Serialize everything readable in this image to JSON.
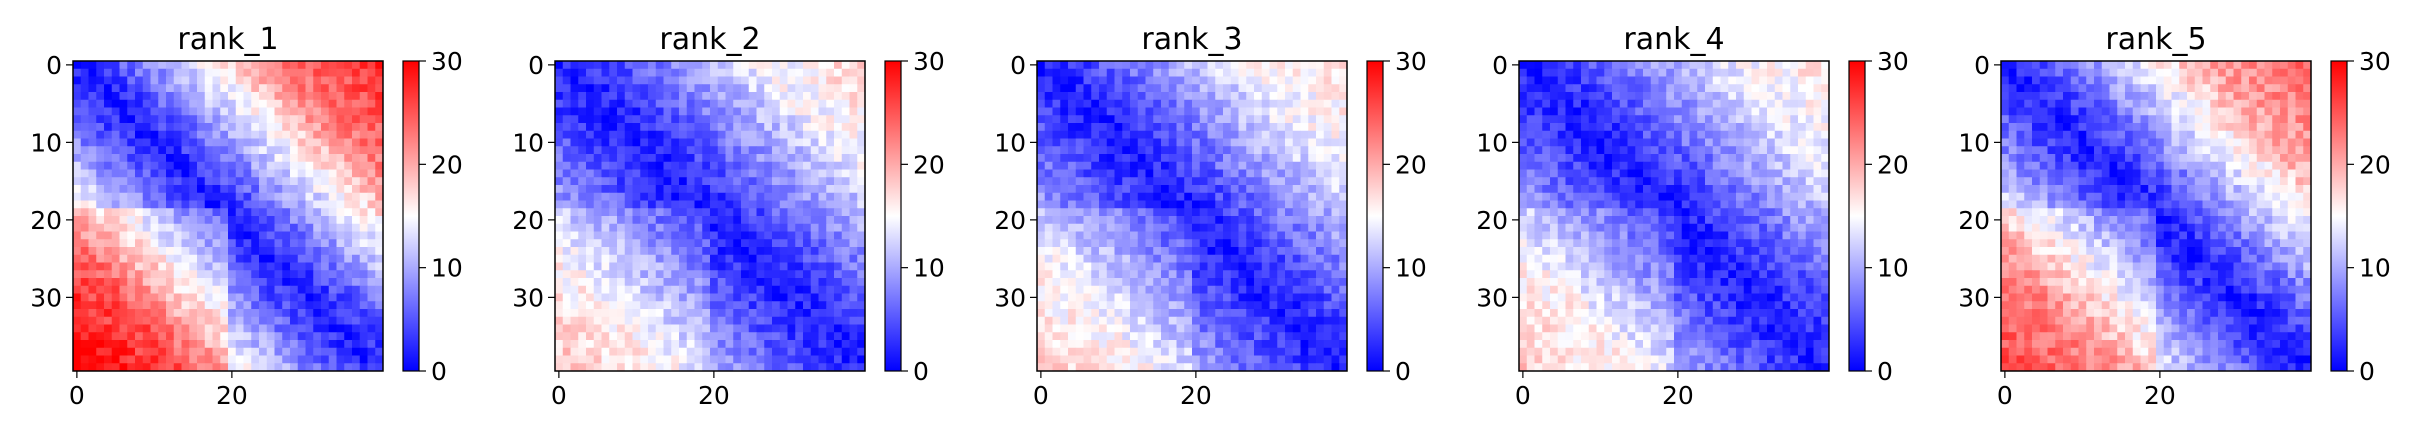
{
  "chart_data": [
    {
      "type": "heatmap",
      "title": "rank_1",
      "x_ticks": [
        "0",
        "20"
      ],
      "y_ticks": [
        "0",
        "10",
        "20",
        "30"
      ],
      "n_rows": 40,
      "n_cols": 40,
      "colorbar": {
        "min": 0,
        "max": 30,
        "ticks": [
          "0",
          "10",
          "20",
          "30"
        ],
        "colormap": "bwr"
      },
      "pattern": {
        "upper_right_corner": 28,
        "lower_left_corner": 27,
        "upper_block_mid": 18,
        "lower_block_mid": 17,
        "diagonal_band": 1.5
      }
    },
    {
      "type": "heatmap",
      "title": "rank_2",
      "x_ticks": [
        "0",
        "20"
      ],
      "y_ticks": [
        "0",
        "10",
        "20",
        "30"
      ],
      "n_rows": 40,
      "n_cols": 40,
      "colorbar": {
        "min": 0,
        "max": 30,
        "ticks": [
          "0",
          "10",
          "20",
          "30"
        ],
        "colormap": "bwr"
      },
      "pattern": {
        "upper_right_corner": 18,
        "lower_left_corner": 16,
        "upper_block_mid": 11,
        "lower_block_mid": 11,
        "diagonal_band": 1.5
      }
    },
    {
      "type": "heatmap",
      "title": "rank_3",
      "x_ticks": [
        "0",
        "20"
      ],
      "y_ticks": [
        "0",
        "10",
        "20",
        "30"
      ],
      "n_rows": 40,
      "n_cols": 40,
      "colorbar": {
        "min": 0,
        "max": 30,
        "ticks": [
          "0",
          "10",
          "20",
          "30"
        ],
        "colormap": "bwr"
      },
      "pattern": {
        "upper_right_corner": 17,
        "lower_left_corner": 15,
        "upper_block_mid": 12,
        "lower_block_mid": 11,
        "diagonal_band": 1.5
      }
    },
    {
      "type": "heatmap",
      "title": "rank_4",
      "x_ticks": [
        "0",
        "20"
      ],
      "y_ticks": [
        "0",
        "10",
        "20",
        "30"
      ],
      "n_rows": 40,
      "n_cols": 40,
      "colorbar": {
        "min": 0,
        "max": 30,
        "ticks": [
          "0",
          "10",
          "20",
          "30"
        ],
        "colormap": "bwr"
      },
      "pattern": {
        "upper_right_corner": 17,
        "lower_left_corner": 16,
        "upper_block_mid": 11,
        "lower_block_mid": 11,
        "diagonal_band": 1.5
      }
    },
    {
      "type": "heatmap",
      "title": "rank_5",
      "x_ticks": [
        "0",
        "20"
      ],
      "y_ticks": [
        "0",
        "10",
        "20",
        "30"
      ],
      "n_rows": 40,
      "n_cols": 40,
      "colorbar": {
        "min": 0,
        "max": 30,
        "ticks": [
          "0",
          "10",
          "20",
          "30"
        ],
        "colormap": "bwr"
      },
      "pattern": {
        "upper_right_corner": 25,
        "lower_left_corner": 23,
        "upper_block_mid": 16,
        "lower_block_mid": 15,
        "diagonal_band": 1.5
      }
    }
  ]
}
